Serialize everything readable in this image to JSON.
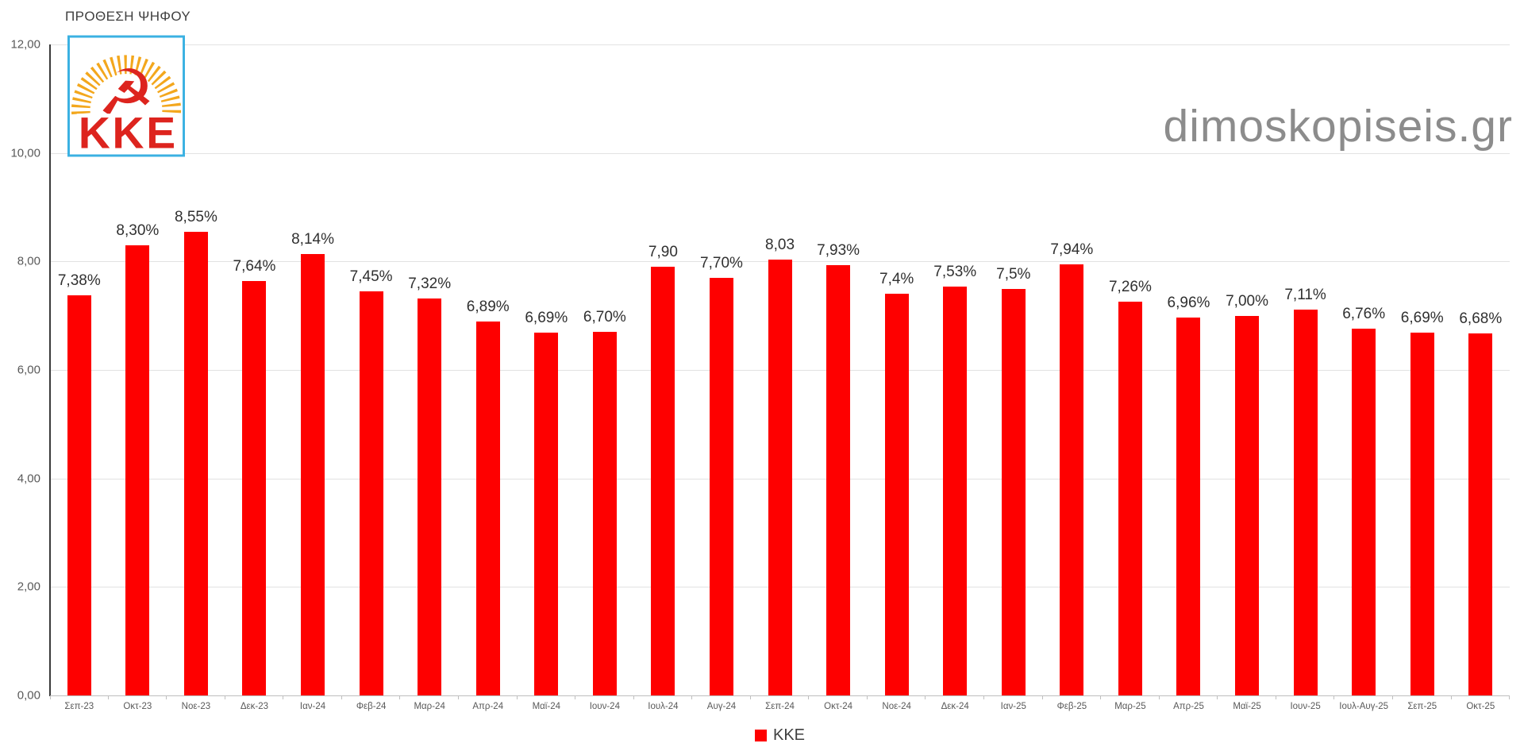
{
  "title": "ΠΡΟΘΕΣΗ ΨΗΦΟΥ",
  "watermark": "dimoskopiseis.gr",
  "logo": {
    "text": "KKE"
  },
  "legend": {
    "label": "ΚΚΕ"
  },
  "colors": {
    "bar": "#fe0000",
    "logo_red": "#dd241e",
    "logo_orange": "#f3a71d",
    "logo_border": "#3ab1e2",
    "watermark": "#8c8c8c",
    "gridline": "#e2e2e2",
    "axis_text": "#595959",
    "value_text": "#303030"
  },
  "chart_data": {
    "type": "bar",
    "title": "ΠΡΟΘΕΣΗ ΨΗΦΟΥ",
    "series_name": "ΚΚΕ",
    "categories": [
      "Σεπ-23",
      "Οκτ-23",
      "Νοε-23",
      "Δεκ-23",
      "Ιαν-24",
      "Φεβ-24",
      "Μαρ-24",
      "Απρ-24",
      "Μαϊ-24",
      "Ιουν-24",
      "Ιουλ-24",
      "Αυγ-24",
      "Σεπ-24",
      "Οκτ-24",
      "Νοε-24",
      "Δεκ-24",
      "Ιαν-25",
      "Φεβ-25",
      "Μαρ-25",
      "Απρ-25",
      "Μαϊ-25",
      "Ιουν-25",
      "Ιουλ-Αυγ-25",
      "Σεπ-25",
      "Οκτ-25"
    ],
    "values": [
      7.38,
      8.3,
      8.55,
      7.64,
      8.14,
      7.45,
      7.32,
      6.89,
      6.69,
      6.7,
      7.9,
      7.7,
      8.03,
      7.93,
      7.4,
      7.53,
      7.5,
      7.94,
      7.26,
      6.96,
      7.0,
      7.11,
      6.76,
      6.69,
      6.68
    ],
    "labels": [
      "7,38%",
      "8,30%",
      "8,55%",
      "7,64%",
      "8,14%",
      "7,45%",
      "7,32%",
      "6,89%",
      "6,69%",
      "6,70%",
      "7,90",
      "7,70%",
      "8,03",
      "7,93%",
      "7,4%",
      "7,53%",
      "7,5%",
      "7,94%",
      "7,26%",
      "6,96%",
      "7,00%",
      "7,11%",
      "6,76%",
      "6,69%",
      "6,68%"
    ],
    "ylim": [
      0,
      12
    ],
    "yticks": [
      {
        "value": 12,
        "label": "12,00"
      },
      {
        "value": 10,
        "label": "10,00"
      },
      {
        "value": 8,
        "label": "8,00"
      },
      {
        "value": 6,
        "label": "6,00"
      },
      {
        "value": 4,
        "label": "4,00"
      },
      {
        "value": 2,
        "label": "2,00"
      },
      {
        "value": 0,
        "label": "0,00"
      }
    ],
    "grid": true,
    "legend_position": "bottom",
    "bar_color": "#fe0000"
  }
}
